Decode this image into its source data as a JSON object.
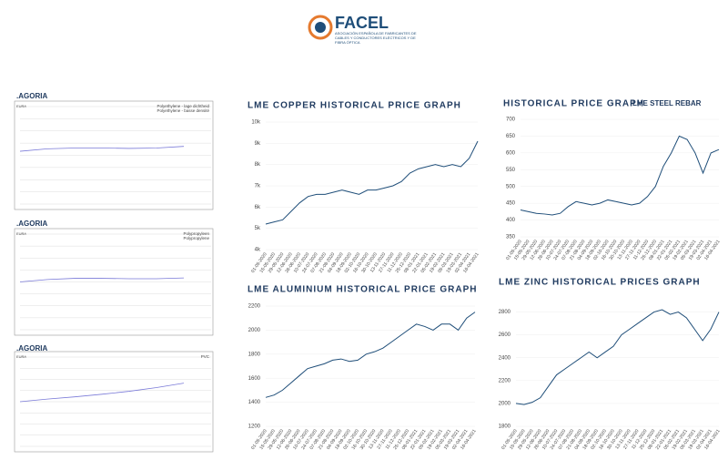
{
  "header": {
    "logo": "FACEL",
    "tagline": "ASOCIACIÓN ESPAÑOLA DE FABRICANTES DE CABLES Y CONDUCTORES ELÉCTRICOS Y DE FIBRA ÓPTICA"
  },
  "chart_data": [
    {
      "type": "line",
      "title": ".AGORIA",
      "ylabel": "EUR/t",
      "legend": [
        "Polyethylene - lage dichtheid",
        "Polyethylene - basse densité"
      ],
      "series": [
        {
          "color": "#7a7ad8",
          "values": [
            1.3,
            1.36,
            1.38,
            1.38,
            1.37,
            1.38,
            1.42
          ]
        }
      ],
      "ylim": [
        0,
        2.4
      ]
    },
    {
      "type": "line",
      "title": ".AGORIA",
      "ylabel": "EUR/t",
      "legend": [
        "Polypropyleen",
        "Polypropylene"
      ],
      "series": [
        {
          "color": "#7a7ad8",
          "values": [
            1.2,
            1.26,
            1.29,
            1.29,
            1.28,
            1.28,
            1.3
          ]
        }
      ],
      "ylim": [
        0,
        2.4
      ]
    },
    {
      "type": "line",
      "title": ".AGORIA",
      "ylabel": "EUR/t",
      "legend": [
        "PVC"
      ],
      "series": [
        {
          "color": "#7a7ad8",
          "values": [
            1.2,
            1.27,
            1.33,
            1.4,
            1.48,
            1.58,
            1.7
          ]
        }
      ],
      "ylim": [
        0,
        2.4
      ]
    },
    {
      "type": "line",
      "title": "LME COPPER HISTORICAL PRICE GRAPH",
      "categories": [
        "01-05-2020",
        "15-05-2020",
        "29-05-2020",
        "12-06-2020",
        "26-06-2020",
        "10-07-2020",
        "24-07-2020",
        "07-08-2020",
        "21-08-2020",
        "04-09-2020",
        "18-09-2020",
        "02-10-2020",
        "16-10-2020",
        "30-10-2020",
        "13-11-2020",
        "27-11-2020",
        "11-12-2020",
        "25-12-2020",
        "08-01-2021",
        "22-01-2021",
        "05-02-2021",
        "19-02-2021",
        "05-03-2021",
        "19-03-2021",
        "02-04-2021",
        "16-04-2021"
      ],
      "series": [
        {
          "color": "#1f4e79",
          "values": [
            5200,
            5300,
            5400,
            5800,
            6200,
            6500,
            6600,
            6600,
            6700,
            6800,
            6700,
            6600,
            6800,
            6800,
            6900,
            7000,
            7200,
            7600,
            7800,
            7900,
            8000,
            7900,
            8000,
            7900,
            8300,
            9100
          ]
        }
      ],
      "ylim": [
        4000,
        10000
      ],
      "yticks": [
        {
          "value": 4000,
          "label": "4k"
        },
        {
          "value": 5000,
          "label": "5k"
        },
        {
          "value": 6000,
          "label": "6k"
        },
        {
          "value": 7000,
          "label": "7k"
        },
        {
          "value": 8000,
          "label": "8k"
        },
        {
          "value": 9000,
          "label": "9k"
        },
        {
          "value": 10000,
          "label": "10k"
        }
      ]
    },
    {
      "type": "line",
      "title": "HISTORICAL PRICE GRAPH",
      "subtitle": "LME STEEL REBAR",
      "categories": [
        "01-05-2020",
        "15-05-2020",
        "29-05-2020",
        "12-06-2020",
        "26-06-2020",
        "10-07-2020",
        "24-07-2020",
        "07-08-2020",
        "21-08-2020",
        "04-09-2020",
        "18-09-2020",
        "02-10-2020",
        "16-10-2020",
        "30-10-2020",
        "13-11-2020",
        "27-11-2020",
        "11-12-2020",
        "25-12-2020",
        "08-01-2021",
        "22-01-2021",
        "05-02-2021",
        "19-02-2021",
        "05-03-2021",
        "19-03-2021",
        "02-04-2021",
        "16-04-2021"
      ],
      "series": [
        {
          "color": "#1f4e79",
          "values": [
            430,
            425,
            420,
            418,
            415,
            420,
            440,
            455,
            450,
            445,
            450,
            460,
            455,
            450,
            445,
            450,
            470,
            500,
            560,
            600,
            650,
            640,
            600,
            540,
            600,
            610
          ]
        }
      ],
      "ylim": [
        350,
        700
      ],
      "yticks": [
        350,
        400,
        450,
        500,
        550,
        600,
        650,
        700
      ]
    },
    {
      "type": "line",
      "title": "LME ALUMINIUM HISTORICAL PRICE GRAPH",
      "categories": [
        "01-05-2020",
        "15-05-2020",
        "29-05-2020",
        "12-06-2020",
        "26-06-2020",
        "10-07-2020",
        "24-07-2020",
        "07-08-2020",
        "21-08-2020",
        "04-09-2020",
        "18-09-2020",
        "02-10-2020",
        "16-10-2020",
        "30-10-2020",
        "13-11-2020",
        "27-11-2020",
        "11-12-2020",
        "25-12-2020",
        "08-01-2021",
        "22-01-2021",
        "05-02-2021",
        "19-02-2021",
        "05-03-2021",
        "19-03-2021",
        "02-04-2021",
        "16-04-2021"
      ],
      "series": [
        {
          "color": "#1f4e79",
          "values": [
            1440,
            1460,
            1500,
            1560,
            1620,
            1680,
            1700,
            1720,
            1750,
            1760,
            1740,
            1750,
            1800,
            1820,
            1850,
            1900,
            1950,
            2000,
            2050,
            2030,
            2000,
            2050,
            2050,
            2000,
            2100,
            2150
          ]
        }
      ],
      "ylim": [
        1200,
        2200
      ],
      "yticks": [
        1200,
        1400,
        1600,
        1800,
        2000,
        2200
      ]
    },
    {
      "type": "line",
      "title": "LME ZINC HISTORICAL PRICES GRAPH",
      "categories": [
        "01-05-2020",
        "15-05-2020",
        "29-05-2020",
        "12-06-2020",
        "26-06-2020",
        "10-07-2020",
        "24-07-2020",
        "07-08-2020",
        "21-08-2020",
        "04-09-2020",
        "18-09-2020",
        "02-10-2020",
        "16-10-2020",
        "30-10-2020",
        "13-11-2020",
        "27-11-2020",
        "11-12-2020",
        "25-12-2020",
        "08-01-2021",
        "22-01-2021",
        "05-02-2021",
        "19-02-2021",
        "05-03-2021",
        "19-03-2021",
        "02-04-2021",
        "16-04-2021"
      ],
      "series": [
        {
          "color": "#1f4e79",
          "values": [
            2000,
            1990,
            2010,
            2050,
            2150,
            2250,
            2300,
            2350,
            2400,
            2450,
            2400,
            2450,
            2500,
            2600,
            2650,
            2700,
            2750,
            2800,
            2820,
            2780,
            2800,
            2750,
            2650,
            2550,
            2650,
            2800
          ]
        }
      ],
      "ylim": [
        1800,
        2900
      ],
      "yticks": [
        1800,
        2000,
        2200,
        2400,
        2600,
        2800
      ]
    }
  ]
}
